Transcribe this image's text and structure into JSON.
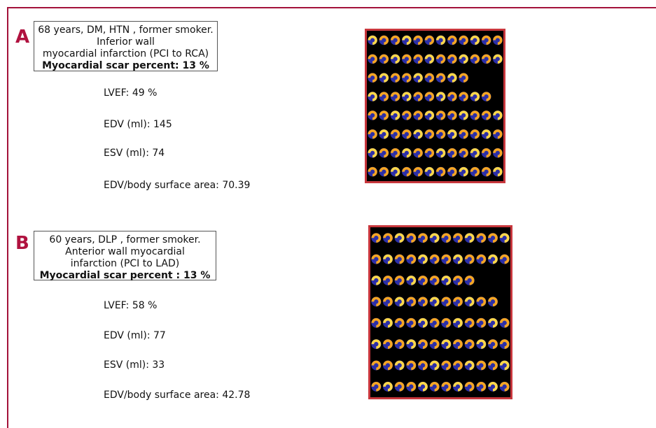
{
  "panels": [
    {
      "letter": "A",
      "description": [
        "68 years, DM, HTN , former smoker. Inferior wall",
        "myocardial infarction (PCI to RCA)"
      ],
      "scar": "Myocardial scar percent: 13 %",
      "metrics": [
        "LVEF: 49 %",
        "EDV (ml): 145",
        "ESV (ml): 74",
        "EDV/body surface area: 70.39"
      ]
    },
    {
      "letter": "B",
      "description": [
        "60 years, DLP , former smoker. Anterior wall myocardial",
        "infarction (PCI to LAD)"
      ],
      "scar": "Myocardial scar percent : 13 %",
      "metrics": [
        "LVEF: 58 %",
        "EDV (ml): 77",
        "ESV (ml): 33",
        "EDV/body surface area: 42.78"
      ]
    }
  ]
}
